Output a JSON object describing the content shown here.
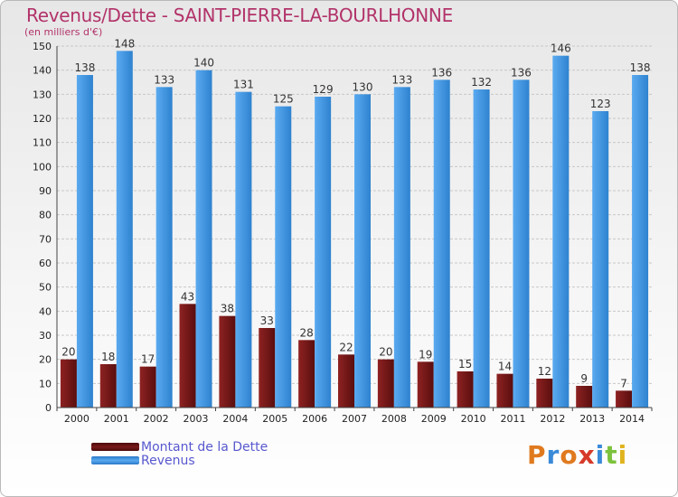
{
  "title": "Revenus/Dette - SAINT-PIERRE-LA-BOURLHONNE",
  "subtitle": "(en milliers d'€)",
  "chart_data": {
    "type": "bar",
    "categories": [
      "2000",
      "2001",
      "2002",
      "2003",
      "2004",
      "2005",
      "2006",
      "2007",
      "2008",
      "2009",
      "2010",
      "2011",
      "2012",
      "2013",
      "2014"
    ],
    "series": [
      {
        "name": "Montant de la Dette",
        "color": "#7a1a1a",
        "values": [
          20,
          18,
          17,
          43,
          38,
          33,
          28,
          22,
          20,
          19,
          15,
          14,
          12,
          9,
          7
        ]
      },
      {
        "name": "Revenus",
        "color": "#3d97e0",
        "values": [
          138,
          148,
          133,
          140,
          131,
          125,
          129,
          130,
          133,
          136,
          132,
          136,
          146,
          123,
          138
        ]
      }
    ],
    "ylim": [
      0,
      150
    ],
    "yticks": [
      0,
      10,
      20,
      30,
      40,
      50,
      60,
      70,
      80,
      90,
      100,
      110,
      120,
      130,
      140,
      150
    ],
    "grid": true,
    "legend_position": "bottom-left"
  },
  "legend": {
    "debt_label": "Montant de la Dette",
    "revenue_label": "Revenus"
  },
  "logo": {
    "letters": [
      "P",
      "r",
      "o",
      "x",
      "i",
      "t",
      "i"
    ],
    "colors": [
      "#e07a1f",
      "#3a8ad8",
      "#e07a1f",
      "#d63a2a",
      "#3a8ad8",
      "#7cc23c",
      "#e0b41f"
    ]
  }
}
